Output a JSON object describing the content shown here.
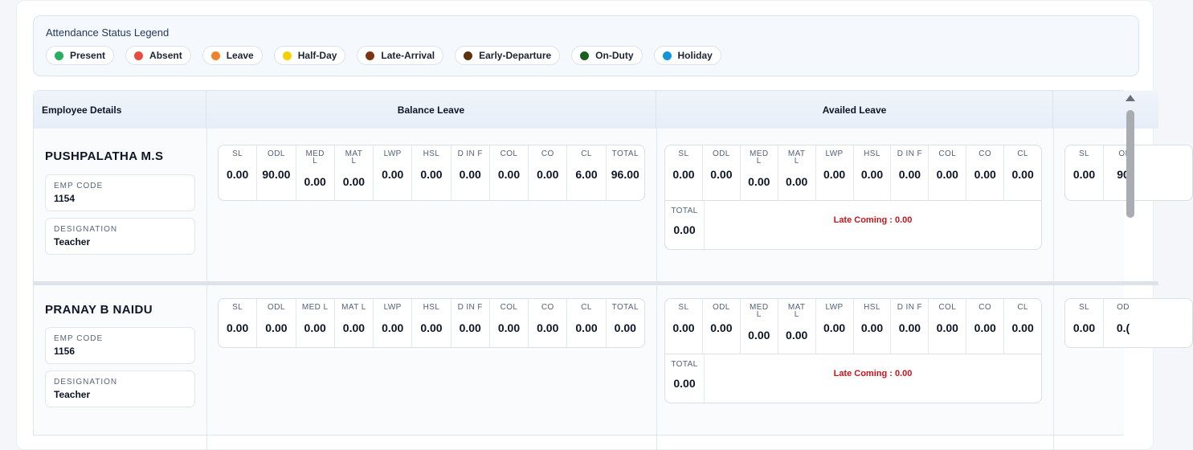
{
  "legend": {
    "title": "Attendance Status Legend",
    "items": [
      {
        "label": "Present",
        "color": "#27ae60"
      },
      {
        "label": "Absent",
        "color": "#e74c3c"
      },
      {
        "label": "Leave",
        "color": "#f0822d"
      },
      {
        "label": "Half-Day",
        "color": "#f5d000"
      },
      {
        "label": "Late-Arrival",
        "color": "#7b3510"
      },
      {
        "label": "Early-Departure",
        "color": "#5c3311"
      },
      {
        "label": "On-Duty",
        "color": "#1b5e20"
      },
      {
        "label": "Holiday",
        "color": "#1296db"
      }
    ]
  },
  "table": {
    "headers": {
      "employee": "Employee Details",
      "balance": "Balance Leave",
      "availed": "Availed Leave"
    },
    "employees": [
      {
        "name": "PUSHPALATHA M.S",
        "emp_code_label": "EMP CODE",
        "emp_code": "1154",
        "designation_label": "DESIGNATION",
        "designation": "Teacher",
        "balance": {
          "labels": [
            "SL",
            "ODL",
            "MED L",
            "MAT L",
            "LWP",
            "HSL",
            "D IN F",
            "COL",
            "CO",
            "CL",
            "TOTAL"
          ],
          "values": [
            "0.00",
            "90.00",
            "0.00",
            "0.00",
            "0.00",
            "0.00",
            "0.00",
            "0.00",
            "0.00",
            "6.00",
            "96.00"
          ]
        },
        "availed": {
          "labels": [
            "SL",
            "ODL",
            "MED L",
            "MAT L",
            "LWP",
            "HSL",
            "D IN F",
            "COL",
            "CO",
            "CL"
          ],
          "values": [
            "0.00",
            "0.00",
            "0.00",
            "0.00",
            "0.00",
            "0.00",
            "0.00",
            "0.00",
            "0.00",
            "0.00"
          ],
          "total_label": "TOTAL",
          "total": "0.00",
          "late_coming": "Late Coming : 0.00"
        },
        "next": {
          "labels": [
            "SL",
            "OI"
          ],
          "values": [
            "0.00",
            "90"
          ]
        }
      },
      {
        "name": "PRANAY B NAIDU",
        "emp_code_label": "EMP CODE",
        "emp_code": "1156",
        "designation_label": "DESIGNATION",
        "designation": "Teacher",
        "balance": {
          "labels": [
            "SL",
            "ODL",
            "MED L",
            "MAT L",
            "LWP",
            "HSL",
            "D IN F",
            "COL",
            "CO",
            "CL",
            "TOTAL"
          ],
          "values": [
            "0.00",
            "0.00",
            "0.00",
            "0.00",
            "0.00",
            "0.00",
            "0.00",
            "0.00",
            "0.00",
            "0.00",
            "0.00"
          ]
        },
        "availed": {
          "labels": [
            "SL",
            "ODL",
            "MED L",
            "MAT L",
            "LWP",
            "HSL",
            "D IN F",
            "COL",
            "CO",
            "CL"
          ],
          "values": [
            "0.00",
            "0.00",
            "0.00",
            "0.00",
            "0.00",
            "0.00",
            "0.00",
            "0.00",
            "0.00",
            "0.00"
          ],
          "total_label": "TOTAL",
          "total": "0.00",
          "late_coming": "Late Coming : 0.00"
        },
        "next": {
          "labels": [
            "SL",
            "OD"
          ],
          "values": [
            "0.00",
            "0.("
          ]
        }
      }
    ]
  }
}
